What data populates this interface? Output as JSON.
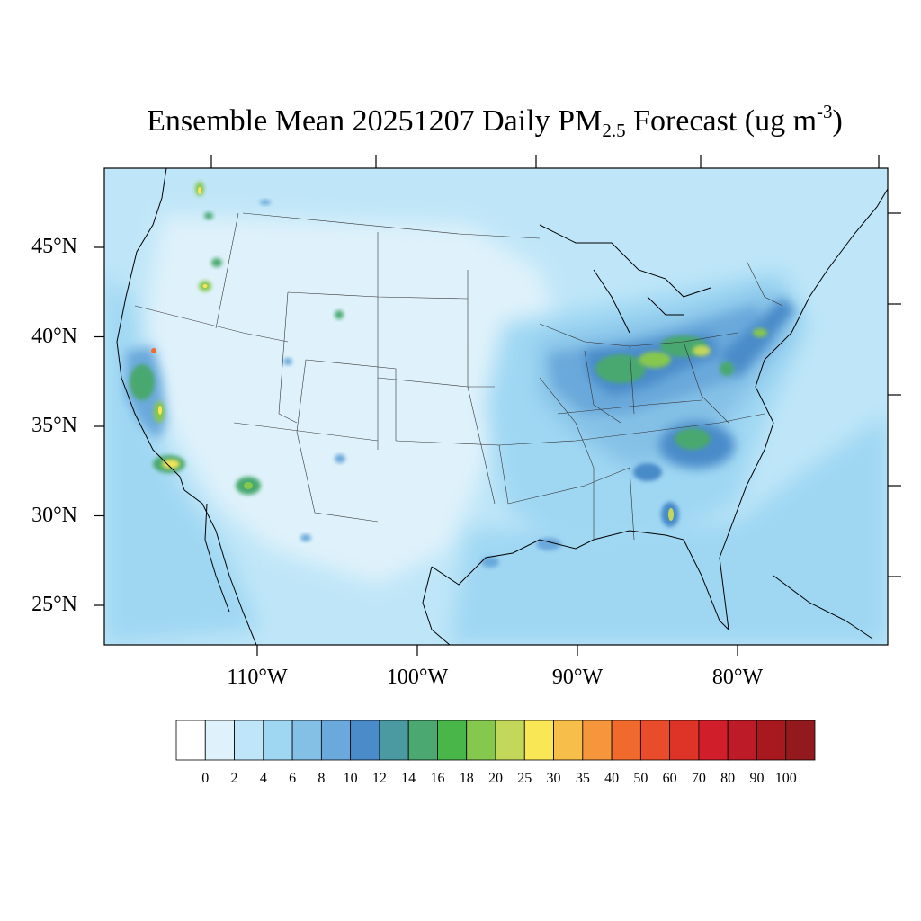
{
  "title": {
    "prefix": "Ensemble Mean 20251207 Daily PM",
    "subscript": "2.5",
    "middle": " Forecast (ug m",
    "superscript": "-3",
    "suffix": ")"
  },
  "map": {
    "lat_labels": [
      {
        "value": 45,
        "text": "45°N"
      },
      {
        "value": 40,
        "text": "40°N"
      },
      {
        "value": 35,
        "text": "35°N"
      },
      {
        "value": 30,
        "text": "30°N"
      },
      {
        "value": 25,
        "text": "25°N"
      }
    ],
    "lon_labels": [
      {
        "value": -110,
        "text": "110°W"
      },
      {
        "value": -100,
        "text": "100°W"
      },
      {
        "value": -90,
        "text": "90°W"
      },
      {
        "value": -80,
        "text": "80°W"
      }
    ]
  },
  "colorbar": {
    "levels": [
      "0",
      "2",
      "4",
      "6",
      "8",
      "10",
      "12",
      "14",
      "16",
      "18",
      "20",
      "25",
      "30",
      "35",
      "40",
      "50",
      "60",
      "70",
      "80",
      "90",
      "100"
    ],
    "colors": [
      "#ffffff",
      "#dff2fb",
      "#bfe6f8",
      "#9fd7f3",
      "#84c0e6",
      "#6aa9db",
      "#4a8bc9",
      "#4b9aa1",
      "#4aa870",
      "#49b64a",
      "#86c74e",
      "#c3d75a",
      "#f9e756",
      "#f7be4a",
      "#f6963c",
      "#f16a2d",
      "#e84c2a",
      "#de3427",
      "#d01f2b",
      "#bd1b28",
      "#a8191f",
      "#931a1c"
    ]
  }
}
